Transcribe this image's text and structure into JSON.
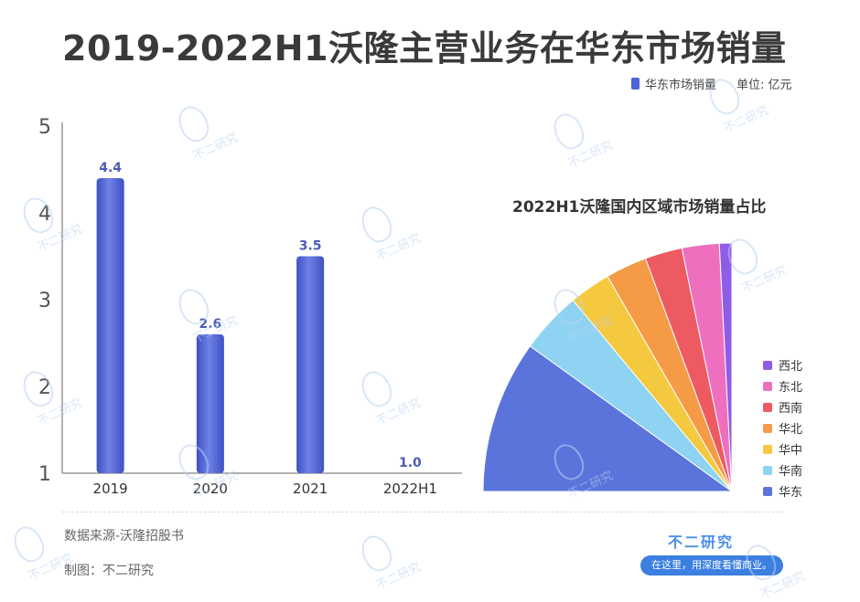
{
  "title": "2019-2022H1沃隆主营业务在华东市场销量",
  "legend": {
    "series_name": "华东市场销量",
    "unit": "单位: 亿元"
  },
  "pie_title": "2022H1沃隆国内区域市场销量占比",
  "footer": {
    "source": "数据来源-沃隆招股书",
    "maker": "制图：不二研究"
  },
  "brand": {
    "name": "不二研究",
    "slogan": "在这里，用深度看懂商业。"
  },
  "watermark_text": "不二研究",
  "colors": {
    "bar": "#4f63d6",
    "label": "#4a5bb8",
    "axis": "#555555"
  },
  "chart_data": [
    {
      "type": "bar",
      "categories": [
        "2019",
        "2020",
        "2021",
        "2022H1"
      ],
      "values": [
        4.4,
        2.6,
        3.5,
        1.0
      ],
      "data_labels": [
        "4.4",
        "2.6",
        "3.5",
        "1.0"
      ],
      "ylim": [
        1,
        5
      ],
      "yticks": [
        "1",
        "2",
        "3",
        "4",
        "5"
      ],
      "series_name": "华东市场销量",
      "unit": "单位: 亿元",
      "grid": false
    },
    {
      "type": "pie",
      "title": "2022H1沃隆国内区域市场销量占比",
      "legend_position": "right",
      "slices": [
        {
          "name": "华东",
          "value": 37,
          "color": "#5b74dc"
        },
        {
          "name": "华南",
          "value": 15,
          "color": "#8fd3f2"
        },
        {
          "name": "华中",
          "value": 10,
          "color": "#f5c93f"
        },
        {
          "name": "华北",
          "value": 10,
          "color": "#f59a45"
        },
        {
          "name": "西南",
          "value": 9,
          "color": "#ee5a62"
        },
        {
          "name": "东北",
          "value": 9,
          "color": "#ef6fbf"
        },
        {
          "name": "西北",
          "value": 3,
          "color": "#8e5ce6"
        }
      ]
    }
  ]
}
